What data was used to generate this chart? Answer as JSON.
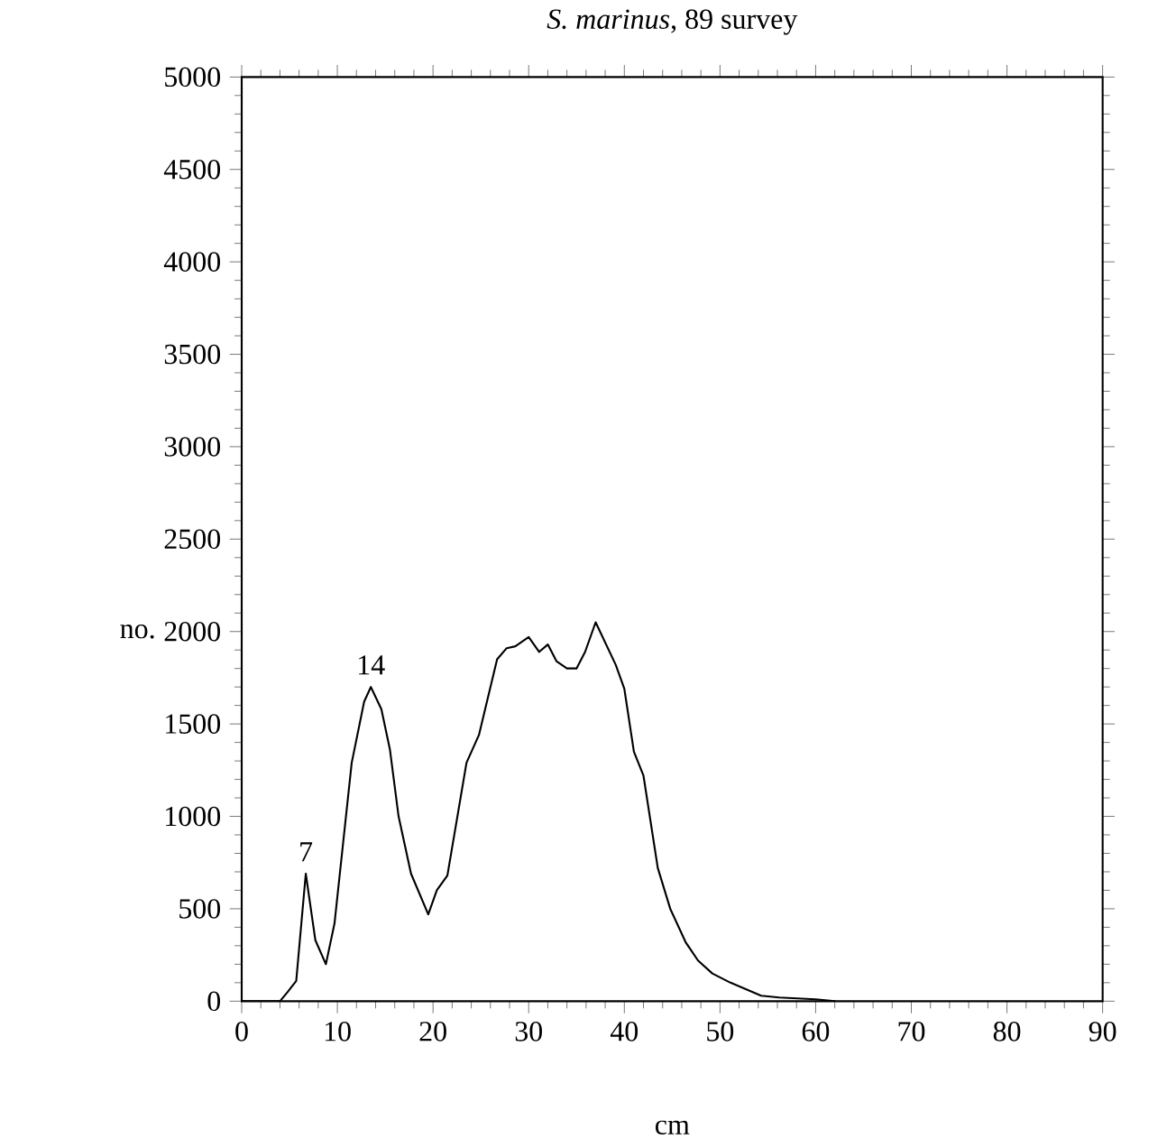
{
  "chart_data": {
    "type": "line",
    "title": "*S. marinus*, 89 survey",
    "xlabel": "cm",
    "ylabel": "no.",
    "xlim": [
      0,
      90
    ],
    "ylim": [
      0,
      5000
    ],
    "xticks": [
      0,
      10,
      20,
      30,
      40,
      50,
      60,
      70,
      80,
      90
    ],
    "yticks": [
      0,
      500,
      1000,
      1500,
      2000,
      2500,
      3000,
      3500,
      4000,
      4500,
      5000
    ],
    "grid": false,
    "marker": "none",
    "line_style": "solid",
    "annotations": [
      {
        "text": "7",
        "x": 6.7,
        "y": 690
      },
      {
        "text": "14",
        "x": 13.5,
        "y": 1700
      }
    ],
    "series": [
      {
        "color": "#000000",
        "x": [
          0,
          4,
          4.8,
          5.7,
          6.7,
          7.7,
          8.8,
          9.7,
          11.5,
          12.8,
          13.5,
          14.6,
          15.5,
          16.4,
          17.7,
          19.5,
          20.4,
          21.5,
          23.5,
          24.8,
          26.7,
          27.7,
          28.6,
          30,
          31.1,
          32,
          32.9,
          34,
          35,
          35.9,
          37,
          39.1,
          40,
          41,
          42,
          43.5,
          44.8,
          46.4,
          47.7,
          49.2,
          51.1,
          54.3,
          56.2,
          60,
          62
        ],
        "values": [
          0,
          0,
          50,
          110,
          690,
          330,
          200,
          420,
          1290,
          1620,
          1700,
          1580,
          1360,
          1000,
          690,
          470,
          600,
          680,
          1290,
          1440,
          1850,
          1910,
          1920,
          1970,
          1890,
          1930,
          1840,
          1800,
          1800,
          1890,
          2050,
          1820,
          1690,
          1350,
          1220,
          720,
          500,
          320,
          220,
          150,
          100,
          30,
          20,
          10,
          0
        ]
      }
    ]
  }
}
